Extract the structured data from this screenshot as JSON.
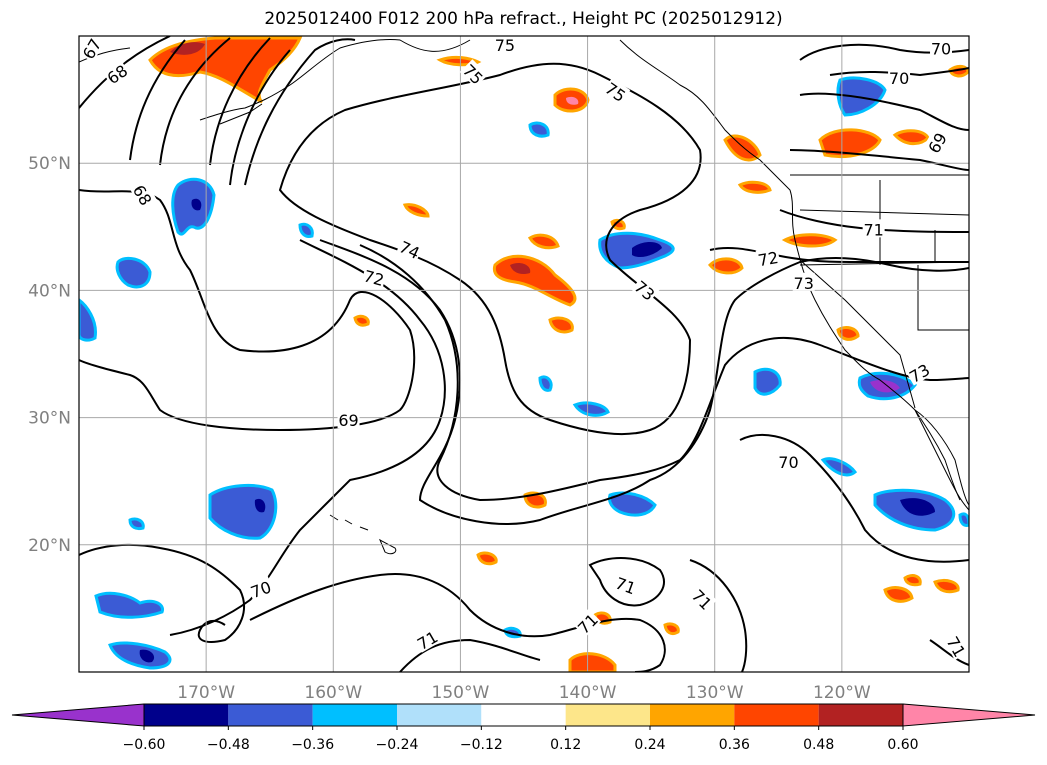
{
  "title": "2025012400 F012 200 hPa refract., Height PC (2025012912)",
  "map": {
    "lat_labels": [
      "50°N",
      "40°N",
      "30°N",
      "20°N"
    ],
    "lon_labels": [
      "170°W",
      "160°W",
      "150°W",
      "140°W",
      "130°W",
      "120°W"
    ],
    "lat_lines": [
      50,
      40,
      30,
      20
    ],
    "lon_lines": [
      -170,
      -160,
      -150,
      -140,
      -130,
      -120
    ],
    "extent": {
      "lon_min": -180,
      "lon_max": -110,
      "lat_min": 10,
      "lat_max": 60
    },
    "grid": true
  },
  "contour_labels": [
    {
      "text": "67",
      "lon": -179,
      "lat": 59,
      "rot": -60
    },
    {
      "text": "68",
      "lon": -177,
      "lat": 57,
      "rot": -35
    },
    {
      "text": "68",
      "lon": -175,
      "lat": 47.5,
      "rot": 60
    },
    {
      "text": "75",
      "lon": -146.5,
      "lat": 59.3,
      "rot": 0
    },
    {
      "text": "75",
      "lon": -149,
      "lat": 57,
      "rot": 45
    },
    {
      "text": "75",
      "lon": -137.8,
      "lat": 55.6,
      "rot": 35
    },
    {
      "text": "74",
      "lon": -154,
      "lat": 43.2,
      "rot": 25
    },
    {
      "text": "72",
      "lon": -156.8,
      "lat": 41,
      "rot": 15
    },
    {
      "text": "73",
      "lon": -135.5,
      "lat": 40,
      "rot": 40
    },
    {
      "text": "72",
      "lon": -125.8,
      "lat": 42.5,
      "rot": -10
    },
    {
      "text": "73",
      "lon": -123,
      "lat": 40.6,
      "rot": 0
    },
    {
      "text": "71",
      "lon": -117.5,
      "lat": 44.8,
      "rot": 0
    },
    {
      "text": "70",
      "lon": -115.5,
      "lat": 56.7,
      "rot": 0
    },
    {
      "text": "70",
      "lon": -112.2,
      "lat": 59,
      "rot": 0
    },
    {
      "text": "69",
      "lon": -112.5,
      "lat": 51.6,
      "rot": -60
    },
    {
      "text": "73",
      "lon": -113.9,
      "lat": 33.5,
      "rot": -30
    },
    {
      "text": "69",
      "lon": -158.8,
      "lat": 29.8,
      "rot": 0
    },
    {
      "text": "70",
      "lon": -124.2,
      "lat": 26.5,
      "rot": 0
    },
    {
      "text": "70",
      "lon": -165.7,
      "lat": 16.5,
      "rot": -20
    },
    {
      "text": "71",
      "lon": -137,
      "lat": 16.8,
      "rot": 20
    },
    {
      "text": "71",
      "lon": -131,
      "lat": 15.7,
      "rot": 45
    },
    {
      "text": "71",
      "lon": -140,
      "lat": 13.8,
      "rot": -45
    },
    {
      "text": "71",
      "lon": -152.6,
      "lat": 12.5,
      "rot": -30
    },
    {
      "text": "71",
      "lon": -111,
      "lat": 12,
      "rot": 60
    }
  ],
  "colorbar": {
    "colors": [
      "#9932cc",
      "#00008b",
      "#3b5bd5",
      "#00bfff",
      "#b0e0fa",
      "#ffffff",
      "#fde68a",
      "#ffa500",
      "#ff4500",
      "#b22222",
      "#ff85a8"
    ],
    "tick_labels": [
      "−0.60",
      "−0.48",
      "−0.36",
      "−0.24",
      "−0.12",
      "0.12",
      "0.24",
      "0.36",
      "0.48",
      "0.60"
    ]
  }
}
